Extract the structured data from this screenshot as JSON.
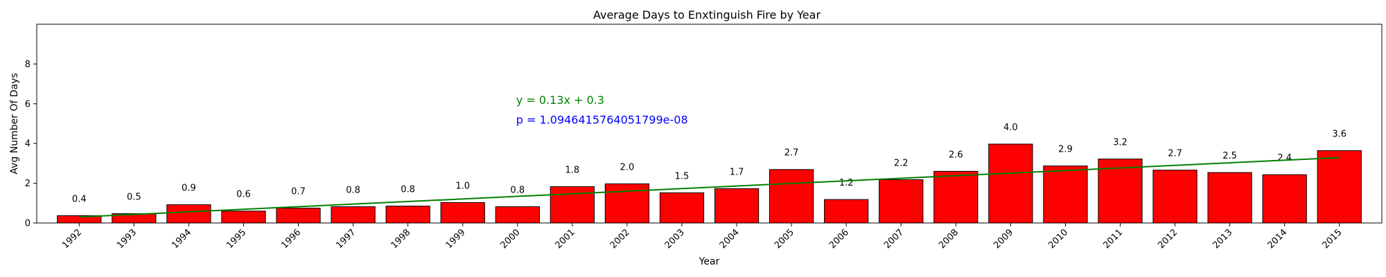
{
  "chart_data": {
    "type": "bar",
    "title": "Average Days to Enxtinguish Fire by Year",
    "xlabel": "Year",
    "ylabel": "Avg Number Of Days",
    "categories": [
      "1992",
      "1993",
      "1994",
      "1995",
      "1996",
      "1997",
      "1998",
      "1999",
      "2000",
      "2001",
      "2002",
      "2003",
      "2004",
      "2005",
      "2006",
      "2007",
      "2008",
      "2009",
      "2010",
      "2011",
      "2012",
      "2013",
      "2014",
      "2015"
    ],
    "values": [
      0.37,
      0.47,
      0.92,
      0.6,
      0.75,
      0.82,
      0.85,
      1.03,
      0.82,
      1.83,
      1.97,
      1.52,
      1.73,
      2.69,
      1.18,
      2.18,
      2.6,
      3.97,
      2.87,
      3.22,
      2.66,
      2.54,
      2.43,
      3.64
    ],
    "data_labels": [
      "0.4",
      "0.5",
      "0.9",
      "0.6",
      "0.7",
      "0.8",
      "0.8",
      "1.0",
      "0.8",
      "1.8",
      "2.0",
      "1.5",
      "1.7",
      "2.7",
      "1.2",
      "2.2",
      "2.6",
      "4.0",
      "2.9",
      "3.2",
      "2.7",
      "2.5",
      "2.4",
      "3.6"
    ],
    "ylim": [
      0,
      10
    ],
    "yticks": [
      0,
      2,
      4,
      6,
      8
    ],
    "grid": false,
    "bar_color": "#ff0000",
    "trendline": {
      "slope": 0.13,
      "intercept": 0.3,
      "color": "#008000"
    },
    "annotations": [
      {
        "text": "y = 0.13x + 0.3",
        "color": "#008000",
        "x": "2000",
        "y": 6.0
      },
      {
        "text": "p = 1.0946415764051799e-08",
        "color": "#0000ff",
        "x": "2000",
        "y": 5.0
      }
    ]
  }
}
